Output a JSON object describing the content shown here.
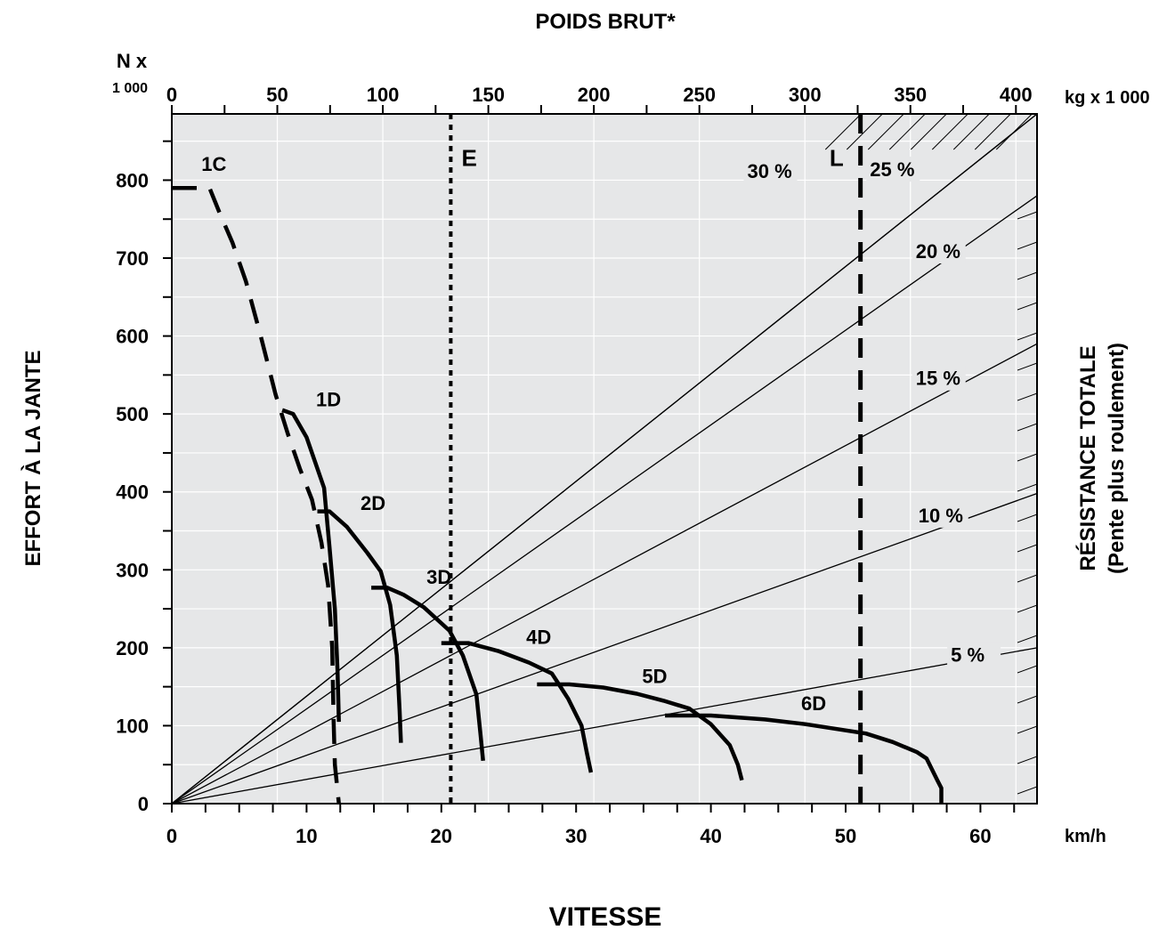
{
  "chart_data": {
    "type": "line",
    "top_title": "POIDS BRUT*",
    "bottom_title": "VITESSE",
    "left_title": "EFFORT À LA JANTE",
    "right_title_line1": "RÉSISTANCE TOTALE",
    "right_title_line2": "(Pente plus roulement)",
    "y_unit_line1": "N x",
    "y_unit_line2": "1 000",
    "top_unit": "kg x 1 000",
    "x_unit": "km/h",
    "x_axis": {
      "min": 0,
      "max": 64.2,
      "ticks": [
        0,
        10,
        20,
        30,
        40,
        50,
        60
      ],
      "tick_labels": [
        "0",
        "10",
        "20",
        "30",
        "40",
        "50",
        "60"
      ]
    },
    "y_axis": {
      "min": 0,
      "max": 885,
      "ticks": [
        0,
        100,
        200,
        300,
        400,
        500,
        600,
        700,
        800
      ],
      "tick_labels": [
        "0",
        "100",
        "200",
        "300",
        "400",
        "500",
        "600",
        "700",
        "800"
      ]
    },
    "top_axis": {
      "min": 0,
      "max": 410,
      "ticks": [
        0,
        50,
        100,
        150,
        200,
        250,
        300,
        350,
        400
      ],
      "tick_labels": [
        "0",
        "50",
        "100",
        "150",
        "200",
        "250",
        "300",
        "350",
        "400"
      ]
    },
    "gear_curves": [
      {
        "label": "1C",
        "style": "dashed",
        "label_x": 2.2,
        "label_y": 812,
        "points": [
          [
            0.0,
            790
          ],
          [
            1.5,
            790
          ],
          [
            2.8,
            790
          ],
          [
            3.5,
            760
          ],
          [
            4.5,
            720
          ],
          [
            5.5,
            670
          ],
          [
            6.6,
            600
          ],
          [
            7.7,
            525
          ],
          [
            8.6,
            475
          ],
          [
            9.5,
            430
          ],
          [
            10.4,
            390
          ],
          [
            11.1,
            335
          ],
          [
            11.6,
            280
          ],
          [
            11.9,
            200
          ],
          [
            12.0,
            110
          ],
          [
            12.1,
            50
          ],
          [
            12.4,
            0
          ]
        ]
      },
      {
        "label": "1D",
        "style": "solid",
        "label_x": 10.7,
        "label_y": 510,
        "points": [
          [
            8.2,
            505
          ],
          [
            9.0,
            500
          ],
          [
            10.0,
            470
          ],
          [
            11.3,
            405
          ],
          [
            11.7,
            330
          ],
          [
            12.1,
            250
          ],
          [
            12.3,
            170
          ],
          [
            12.4,
            105
          ]
        ]
      },
      {
        "label": "2D",
        "style": "solid",
        "label_x": 14.0,
        "label_y": 377,
        "points": [
          [
            10.8,
            375
          ],
          [
            11.7,
            375
          ],
          [
            13.0,
            355
          ],
          [
            14.5,
            322
          ],
          [
            15.5,
            298
          ],
          [
            16.2,
            255
          ],
          [
            16.7,
            190
          ],
          [
            16.9,
            120
          ],
          [
            17.0,
            78
          ]
        ]
      },
      {
        "label": "3D",
        "style": "solid",
        "label_x": 18.9,
        "label_y": 282,
        "points": [
          [
            14.8,
            277
          ],
          [
            16.0,
            277
          ],
          [
            17.2,
            268
          ],
          [
            18.7,
            252
          ],
          [
            20.6,
            222
          ],
          [
            21.6,
            190
          ],
          [
            22.6,
            140
          ],
          [
            22.9,
            90
          ],
          [
            23.1,
            55
          ]
        ]
      },
      {
        "label": "4D",
        "style": "solid",
        "label_x": 26.3,
        "label_y": 205,
        "points": [
          [
            20.0,
            206
          ],
          [
            22.0,
            206
          ],
          [
            24.2,
            196
          ],
          [
            26.5,
            181
          ],
          [
            28.2,
            167
          ],
          [
            29.4,
            135
          ],
          [
            30.4,
            100
          ],
          [
            30.8,
            65
          ],
          [
            31.1,
            40
          ]
        ]
      },
      {
        "label": "5D",
        "style": "solid",
        "label_x": 34.9,
        "label_y": 155,
        "points": [
          [
            27.1,
            153
          ],
          [
            29.5,
            153
          ],
          [
            32.0,
            149
          ],
          [
            34.5,
            141
          ],
          [
            36.5,
            132
          ],
          [
            38.4,
            122
          ],
          [
            40.0,
            102
          ],
          [
            41.4,
            75
          ],
          [
            42.0,
            50
          ],
          [
            42.3,
            30
          ]
        ]
      },
      {
        "label": "6D",
        "style": "solid",
        "label_x": 46.7,
        "label_y": 120,
        "points": [
          [
            36.6,
            113
          ],
          [
            40.0,
            113
          ],
          [
            44.0,
            108
          ],
          [
            47.0,
            102
          ],
          [
            51.5,
            90
          ],
          [
            53.5,
            79
          ],
          [
            55.3,
            66
          ],
          [
            56.0,
            58
          ],
          [
            56.8,
            30
          ],
          [
            57.1,
            20
          ],
          [
            57.1,
            0
          ]
        ]
      }
    ],
    "grade_lines": [
      {
        "label": "5 %",
        "percent": 5,
        "end_y": 200,
        "label_x": 57.8,
        "label_y": 182
      },
      {
        "label": "10 %",
        "percent": 10,
        "end_y": 398,
        "label_x": 55.4,
        "label_y": 361
      },
      {
        "label": "15 %",
        "percent": 15,
        "end_y": 590,
        "label_x": 55.2,
        "label_y": 537
      },
      {
        "label": "20 %",
        "percent": 20,
        "end_y": 780,
        "label_x": 55.2,
        "label_y": 700
      },
      {
        "label": "25 %",
        "percent": 25,
        "end_y": 885,
        "label_x": 51.8,
        "label_y": 805
      },
      {
        "label": "30 %",
        "percent": 30,
        "end_y": 885,
        "label_x": 42.7,
        "label_y": 803
      }
    ],
    "reference_lines": [
      {
        "label": "E",
        "x": 20.7,
        "style": "dotted",
        "label_x": 21.5,
        "label_y": 818
      },
      {
        "label": "L",
        "x": 51.1,
        "style": "dashed",
        "label_x": 48.8,
        "label_y": 818
      }
    ],
    "hatch_region": "top-right"
  }
}
